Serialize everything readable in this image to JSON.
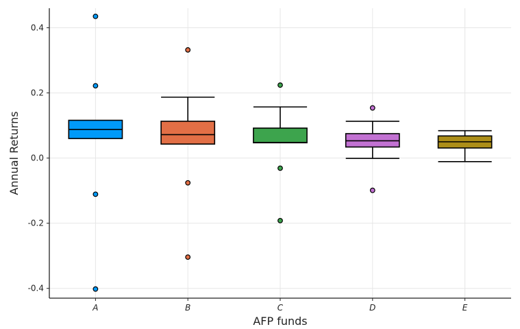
{
  "chart_data": {
    "type": "box",
    "xlabel": "AFP funds",
    "ylabel": "Annual Returns",
    "categories": [
      "A",
      "B",
      "C",
      "D",
      "E"
    ],
    "ylim": [
      -0.43,
      0.46
    ],
    "yticks": [
      0.4,
      0.2,
      0.0,
      -0.2,
      -0.4
    ],
    "ytick_labels": [
      "0.4",
      "0.2",
      "0.0",
      "-0.2",
      "-0.4"
    ],
    "grid": true,
    "legend": "none",
    "series": [
      {
        "category": "A",
        "color": "#009af9",
        "q1": 0.06,
        "median": 0.088,
        "q3": 0.116,
        "whisker_low": 0.06,
        "whisker_high": 0.116,
        "outliers": [
          0.435,
          0.222,
          -0.111,
          -0.402
        ]
      },
      {
        "category": "B",
        "color": "#e26f46",
        "q1": 0.043,
        "median": 0.072,
        "q3": 0.113,
        "whisker_low": 0.043,
        "whisker_high": 0.187,
        "outliers": [
          0.332,
          -0.076,
          -0.304
        ]
      },
      {
        "category": "C",
        "color": "#3da44d",
        "q1": 0.047,
        "median": 0.048,
        "q3": 0.092,
        "whisker_low": 0.047,
        "whisker_high": 0.157,
        "outliers": [
          0.224,
          -0.031,
          -0.192
        ]
      },
      {
        "category": "D",
        "color": "#c271d2",
        "q1": 0.034,
        "median": 0.053,
        "q3": 0.075,
        "whisker_low": -0.001,
        "whisker_high": 0.113,
        "outliers": [
          0.154,
          -0.099
        ]
      },
      {
        "category": "E",
        "color": "#ac8e18",
        "q1": 0.031,
        "median": 0.05,
        "q3": 0.068,
        "whisker_low": -0.011,
        "whisker_high": 0.084,
        "outliers": []
      }
    ]
  }
}
